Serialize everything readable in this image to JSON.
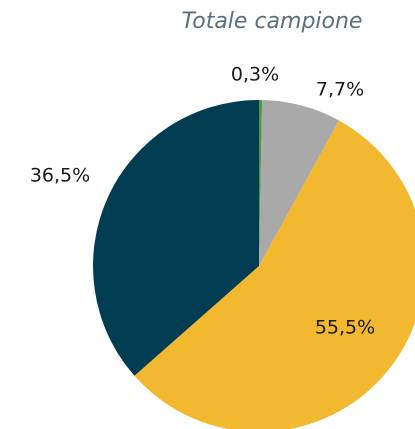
{
  "chart_data": {
    "type": "pie",
    "title": "Totale campione",
    "values": [
      0.3,
      7.7,
      55.5,
      36.5
    ],
    "value_labels": [
      "0,3%",
      "7,7%",
      "55,5%",
      "36,5%"
    ],
    "colors": [
      "#4e9a3a",
      "#a9a9a9",
      "#f2b830",
      "#003d52"
    ]
  }
}
